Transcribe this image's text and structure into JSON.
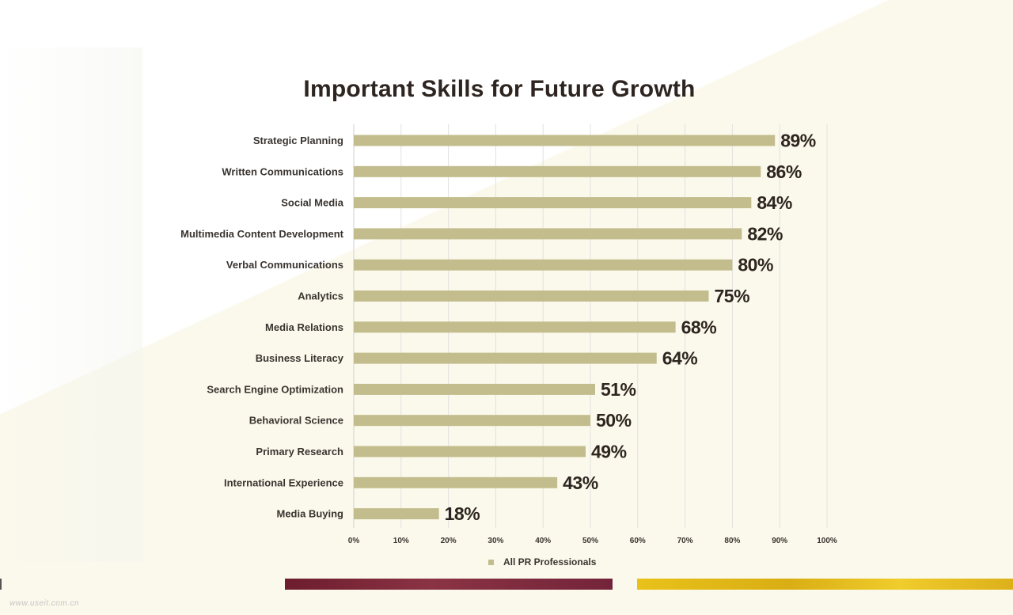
{
  "watermark": "www.useit.com.cn",
  "colors": {
    "bar": "#c3bd8d",
    "text": "#2e2520",
    "grid": "#e2e2e2"
  },
  "legend": {
    "label": "All PR Professionals",
    "swatch_icon": "square-swatch-icon"
  },
  "chart_data": {
    "type": "bar",
    "orientation": "horizontal",
    "title": "Important Skills for Future Growth",
    "categories": [
      "Strategic Planning",
      "Written Communications",
      "Social Media",
      "Multimedia Content Development",
      "Verbal Communications",
      "Analytics",
      "Media Relations",
      "Business  Literacy",
      "Search Engine  Optimization",
      "Behavioral Science",
      "Primary Research",
      "International  Experience",
      "Media Buying"
    ],
    "series": [
      {
        "name": "All PR Professionals",
        "values": [
          89,
          86,
          84,
          82,
          80,
          75,
          68,
          64,
          51,
          50,
          49,
          43,
          18
        ]
      }
    ],
    "data_labels": [
      "89%",
      "86%",
      "84%",
      "82%",
      "80%",
      "75%",
      "68%",
      "64%",
      "51%",
      "50%",
      "49%",
      "43%",
      "18%"
    ],
    "xlim": [
      0,
      100
    ],
    "x_ticks": [
      "0%",
      "10%",
      "20%",
      "30%",
      "40%",
      "50%",
      "60%",
      "70%",
      "80%",
      "90%",
      "100%"
    ],
    "grid": true,
    "legend_position": "bottom"
  }
}
